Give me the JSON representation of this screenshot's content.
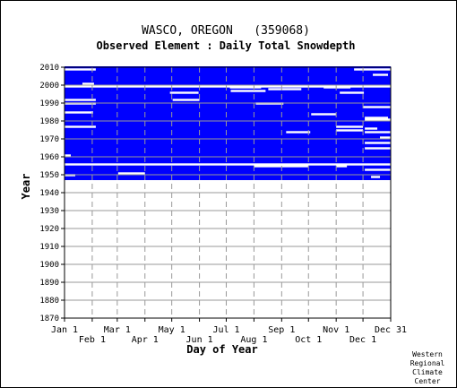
{
  "chart_data": {
    "type": "heatmap",
    "title": "WASCO, OREGON   (359068)",
    "subtitle": "Observed Element : Daily Total Snowdepth",
    "xlabel": "Day of Year",
    "ylabel": "Year",
    "x_range_days": [
      0,
      365
    ],
    "ylim": [
      1870,
      2010
    ],
    "y_ticks": [
      1870,
      1880,
      1890,
      1900,
      1910,
      1920,
      1930,
      1940,
      1950,
      1960,
      1970,
      1980,
      1990,
      2000,
      2010
    ],
    "x_ticks_top": [
      {
        "label": "Jan 1",
        "day": 0
      },
      {
        "label": "Mar 1",
        "day": 59
      },
      {
        "label": "May 1",
        "day": 120
      },
      {
        "label": "Jul 1",
        "day": 181
      },
      {
        "label": "Sep 1",
        "day": 243
      },
      {
        "label": "Nov 1",
        "day": 304
      },
      {
        "label": "Dec 31",
        "day": 365
      }
    ],
    "x_ticks_bottom": [
      {
        "label": "Feb 1",
        "day": 31
      },
      {
        "label": "Apr 1",
        "day": 90
      },
      {
        "label": "Jun 1",
        "day": 151
      },
      {
        "label": "Aug 1",
        "day": 212
      },
      {
        "label": "Oct 1",
        "day": 273
      },
      {
        "label": "Dec 1",
        "day": 334
      }
    ],
    "data_color": "#0000ff",
    "grid": true,
    "record_span_years": [
      1947,
      2010
    ],
    "gaps": [
      {
        "year": 2009,
        "day_start": 0,
        "day_end": 35
      },
      {
        "year": 2009,
        "day_start": 324,
        "day_end": 365
      },
      {
        "year": 2006,
        "day_start": 345,
        "day_end": 362
      },
      {
        "year": 2001,
        "day_start": 20,
        "day_end": 33
      },
      {
        "year": 1999.5,
        "day_start": 0,
        "day_end": 365
      },
      {
        "year": 1999,
        "day_start": 185,
        "day_end": 220
      },
      {
        "year": 1999,
        "day_start": 290,
        "day_end": 320
      },
      {
        "year": 1998,
        "day_start": 228,
        "day_end": 265
      },
      {
        "year": 1997,
        "day_start": 186,
        "day_end": 225
      },
      {
        "year": 1996,
        "day_start": 118,
        "day_end": 150
      },
      {
        "year": 1996,
        "day_start": 308,
        "day_end": 335
      },
      {
        "year": 1992,
        "day_start": 0,
        "day_end": 35
      },
      {
        "year": 1992,
        "day_start": 121,
        "day_end": 151
      },
      {
        "year": 1990,
        "day_start": 0,
        "day_end": 35
      },
      {
        "year": 1990,
        "day_start": 214,
        "day_end": 245
      },
      {
        "year": 1988,
        "day_start": 334,
        "day_end": 365
      },
      {
        "year": 1985,
        "day_start": 0,
        "day_end": 32
      },
      {
        "year": 1984,
        "day_start": 276,
        "day_end": 304
      },
      {
        "year": 1982,
        "day_start": 336,
        "day_end": 362
      },
      {
        "year": 1981,
        "day_start": 336,
        "day_end": 365
      },
      {
        "year": 1977,
        "day_start": 0,
        "day_end": 35
      },
      {
        "year": 1977,
        "day_start": 304,
        "day_end": 334
      },
      {
        "year": 1976,
        "day_start": 336,
        "day_end": 350
      },
      {
        "year": 1975,
        "day_start": 304,
        "day_end": 334
      },
      {
        "year": 1974,
        "day_start": 248,
        "day_end": 275
      },
      {
        "year": 1974,
        "day_start": 336,
        "day_end": 365
      },
      {
        "year": 1971,
        "day_start": 353,
        "day_end": 365
      },
      {
        "year": 1968,
        "day_start": 336,
        "day_end": 365
      },
      {
        "year": 1965,
        "day_start": 336,
        "day_end": 365
      },
      {
        "year": 1961,
        "day_start": 0,
        "day_end": 7
      },
      {
        "year": 1956,
        "day_start": 0,
        "day_end": 365
      },
      {
        "year": 1955,
        "day_start": 212,
        "day_end": 273
      },
      {
        "year": 1955,
        "day_start": 304,
        "day_end": 316
      },
      {
        "year": 1953,
        "day_start": 336,
        "day_end": 365
      },
      {
        "year": 1951,
        "day_start": 60,
        "day_end": 90
      },
      {
        "year": 1950,
        "day_start": 0,
        "day_end": 12
      },
      {
        "year": 1949,
        "day_start": 343,
        "day_end": 353
      }
    ]
  },
  "credit": [
    "Western",
    "Regional",
    "Climate",
    "Center"
  ]
}
